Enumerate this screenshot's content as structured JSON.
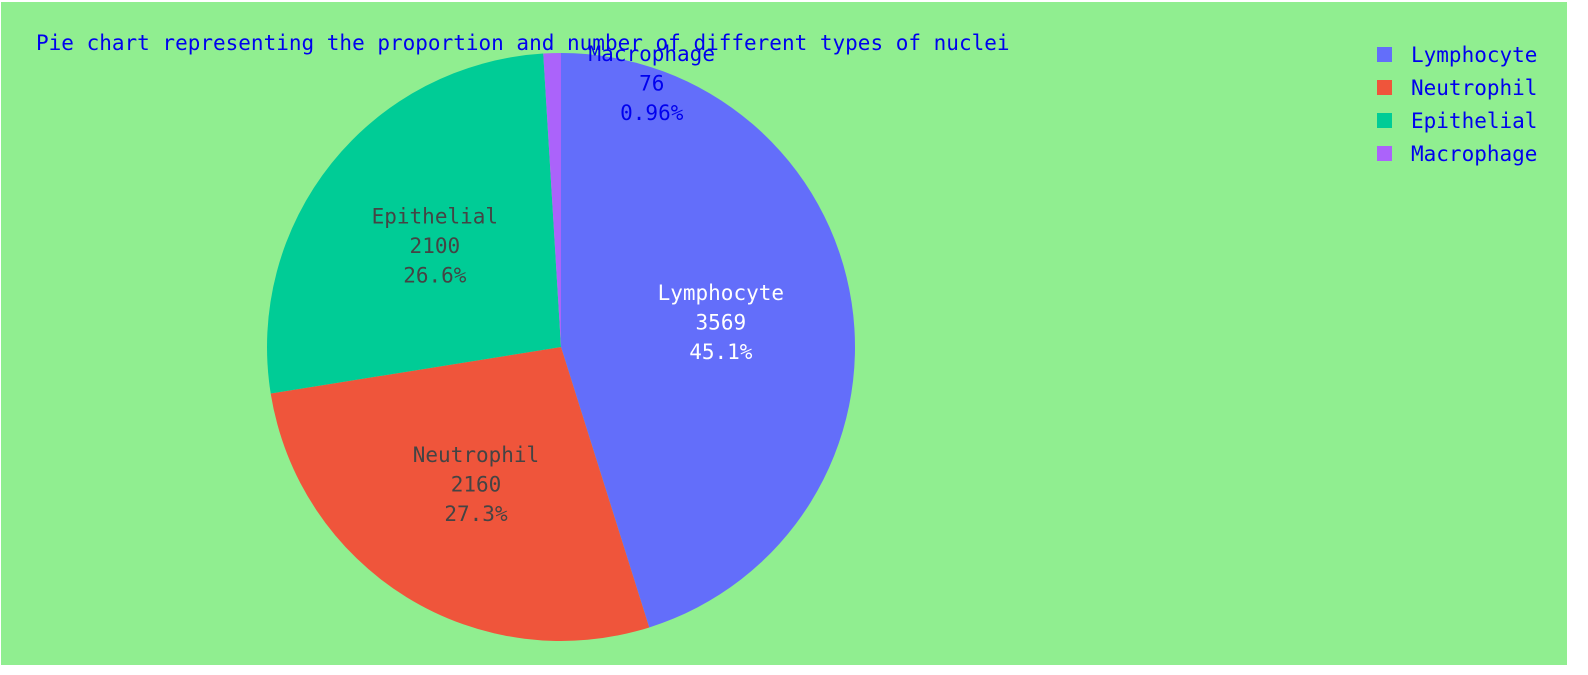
{
  "chart_data": {
    "type": "pie",
    "title": "Pie chart representing the proportion and number of different types of nuclei",
    "labels": [
      "Lymphocyte",
      "Neutrophil",
      "Epithelial",
      "Macrophage"
    ],
    "values": [
      3569,
      2160,
      2100,
      76
    ],
    "percent_labels": [
      "45.1%",
      "27.3%",
      "26.6%",
      "0.96%"
    ],
    "colors": [
      "#636efa",
      "#ef553b",
      "#00cc96",
      "#ab63fa"
    ],
    "inside_text_colors": [
      "#ffffff",
      "#444444",
      "#444444",
      "#0000ee"
    ],
    "legend": {
      "entries": [
        "Lymphocyte",
        "Neutrophil",
        "Epithelial",
        "Macrophage"
      ],
      "position": "top-right"
    },
    "direction": "clockwise",
    "start_angle": "top"
  },
  "colors": {
    "background": "#90ee90",
    "title_text": "#0000ee",
    "legend_text": "#0000ee"
  }
}
